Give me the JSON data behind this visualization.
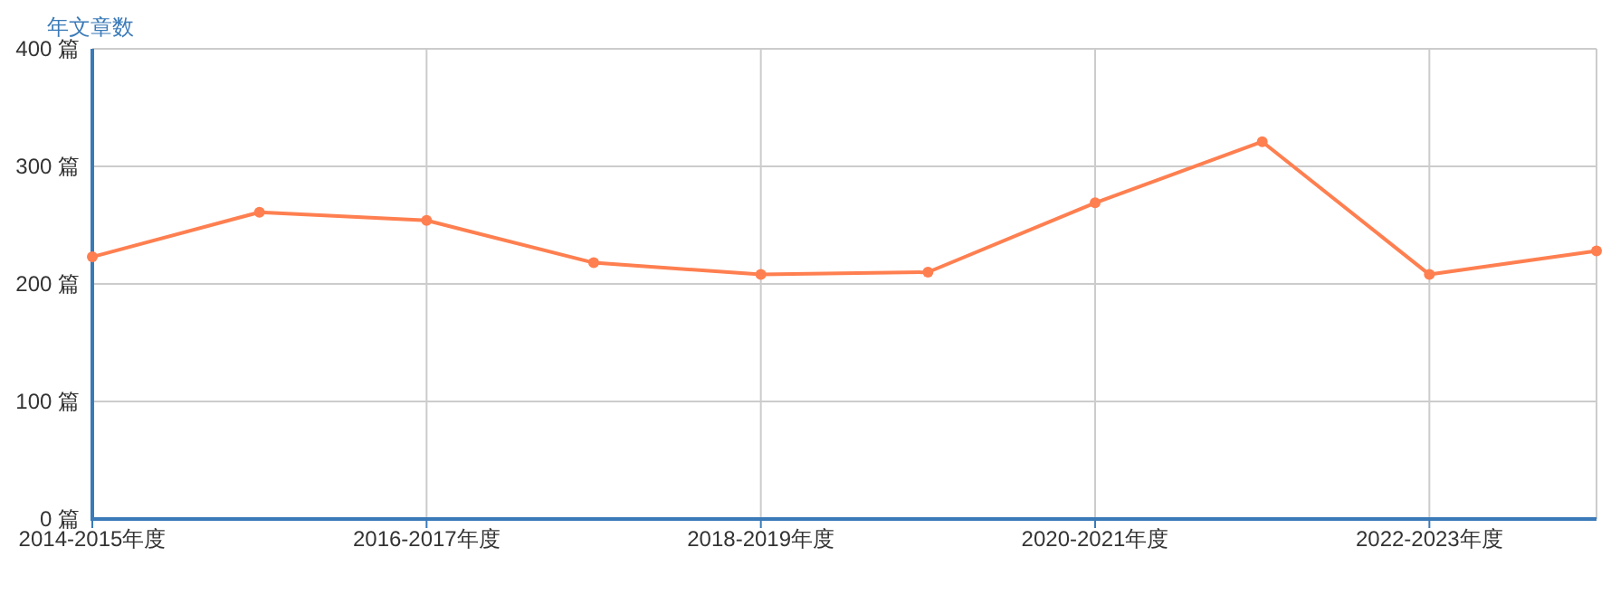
{
  "chart_data": {
    "type": "line",
    "ylabel": "年文章数",
    "categories": [
      "2014-2015年度",
      null,
      "2016-2017年度",
      null,
      "2018-2019年度",
      null,
      "2020-2021年度",
      null,
      "2022-2023年度",
      null
    ],
    "series": [
      {
        "color": "#ff7f50",
        "values": [
          223,
          261,
          254,
          218,
          208,
          210,
          269,
          321,
          208,
          228
        ]
      }
    ],
    "ylim": [
      0,
      400
    ],
    "yticks": [
      {
        "value": 0,
        "label": "0 篇"
      },
      {
        "value": 100,
        "label": "100 篇"
      },
      {
        "value": 200,
        "label": "200 篇"
      },
      {
        "value": 300,
        "label": "300 篇"
      },
      {
        "value": 400,
        "label": "400 篇"
      }
    ],
    "grid": true,
    "marker": "circle",
    "line_style": "solid"
  }
}
